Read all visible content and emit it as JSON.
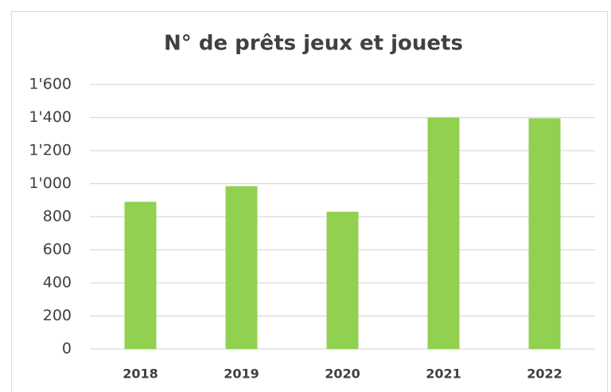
{
  "chart_data": {
    "type": "bar",
    "title": "N° de prêts jeux et jouets",
    "categories": [
      "2018",
      "2019",
      "2020",
      "2021",
      "2022"
    ],
    "values": [
      890,
      985,
      830,
      1400,
      1395
    ],
    "color": "#92d050",
    "ylim": [
      0,
      1600
    ],
    "yticks": [
      0,
      200,
      400,
      600,
      800,
      {
        "value": 1000,
        "label": "1'000"
      },
      {
        "value": 1200,
        "label": "1'200"
      },
      {
        "value": 1400,
        "label": "1'400"
      },
      {
        "value": 1600,
        "label": "1'600"
      }
    ],
    "grid": true
  }
}
